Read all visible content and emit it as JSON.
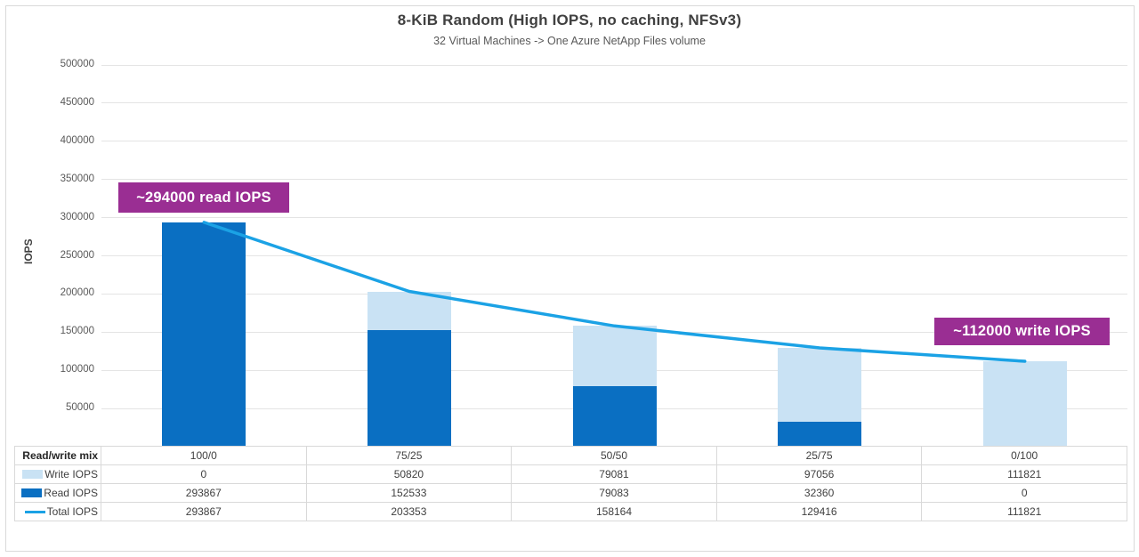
{
  "title": "8-KiB Random (High IOPS, no caching, NFSv3)",
  "subtitle": "32 Virtual Machines -> One Azure NetApp Files volume",
  "y_axis_title": "IOPS",
  "table_header_label": "Read/write mix",
  "chart_data": {
    "type": "bar",
    "subtype": "stacked-bar-with-line",
    "categories": [
      "100/0",
      "75/25",
      "50/50",
      "25/75",
      "0/100"
    ],
    "series": [
      {
        "name": "Write IOPS",
        "type": "bar",
        "color": "#c9e2f4",
        "values": [
          0,
          50820,
          79081,
          97056,
          111821
        ]
      },
      {
        "name": "Read IOPS",
        "type": "bar",
        "color": "#0a6fc2",
        "values": [
          293867,
          152533,
          79083,
          32360,
          0
        ]
      },
      {
        "name": "Total IOPS",
        "type": "line",
        "color": "#1ba2e5",
        "values": [
          293867,
          203353,
          158164,
          129416,
          111821
        ]
      }
    ],
    "title": "8-KiB Random (High IOPS, no caching, NFSv3)",
    "xlabel": "Read/write mix",
    "ylabel": "IOPS",
    "ylim": [
      0,
      500000
    ],
    "ytick_step": 50000,
    "grid": true,
    "legend_position": "table-left"
  },
  "annotations": [
    {
      "text": "~294000 read IOPS",
      "color": "#9a2e93"
    },
    {
      "text": "~112000 write IOPS",
      "color": "#9a2e93"
    }
  ]
}
